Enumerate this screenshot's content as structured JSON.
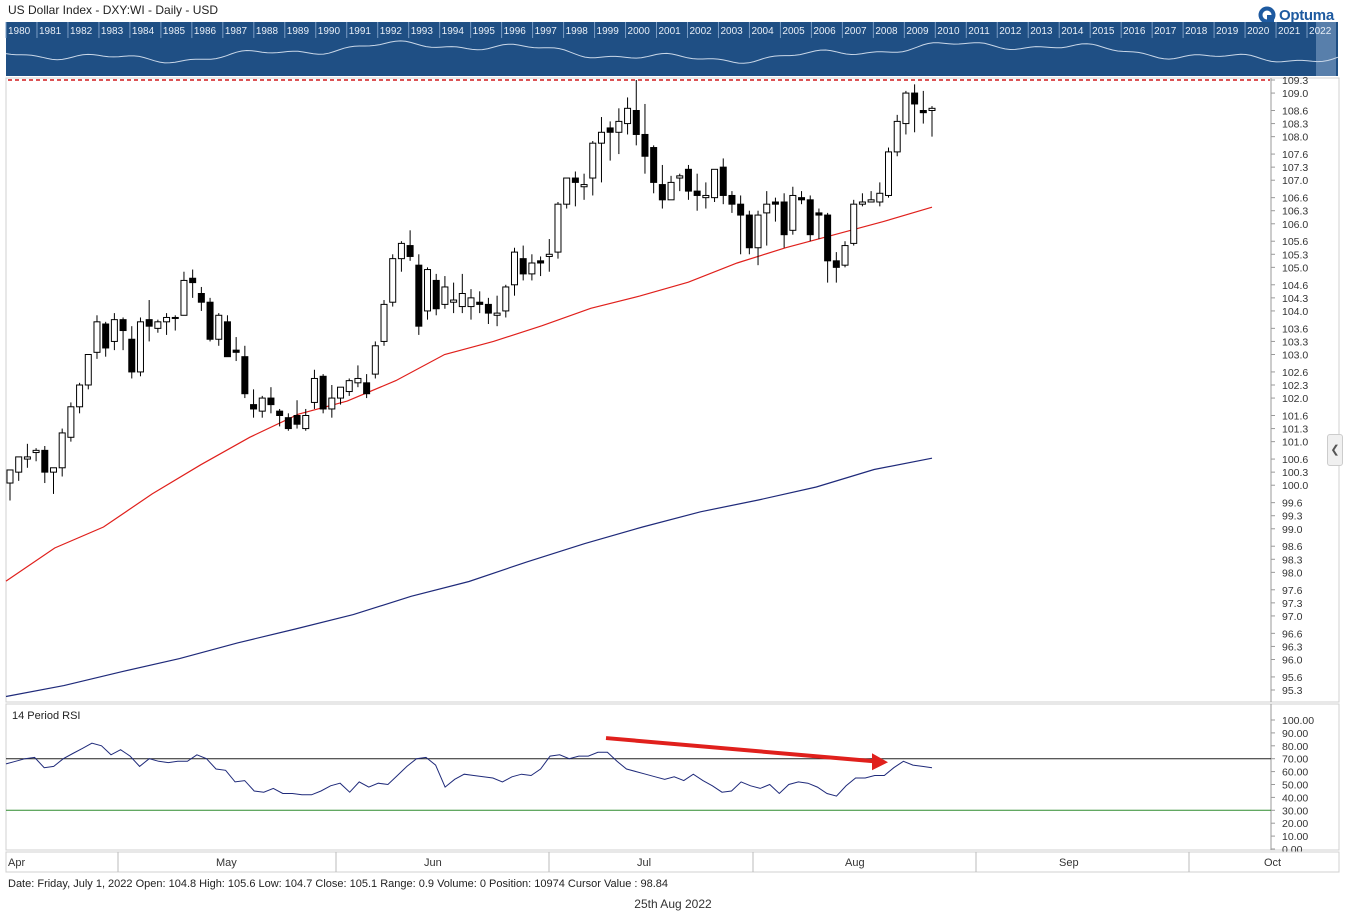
{
  "header": {
    "title": "US Dollar Index - DXY:WI - Daily - USD",
    "logo_text": "Optuma"
  },
  "overview": {
    "years": [
      "1980",
      "1981",
      "1982",
      "1983",
      "1984",
      "1985",
      "1986",
      "1987",
      "1988",
      "1989",
      "1990",
      "1991",
      "1992",
      "1993",
      "1994",
      "1995",
      "1996",
      "1997",
      "1998",
      "1999",
      "2000",
      "2001",
      "2002",
      "2003",
      "2004",
      "2005",
      "2006",
      "2007",
      "2008",
      "2009",
      "2010",
      "2011",
      "2012",
      "2013",
      "2014",
      "2015",
      "2016",
      "2017",
      "2018",
      "2019",
      "2020",
      "2021",
      "2022"
    ]
  },
  "chart_data": [
    {
      "type": "candlestick",
      "title": "US Dollar Index - DXY:WI - Daily - USD",
      "y_ticks": [
        109.3,
        109.0,
        108.6,
        108.3,
        108.0,
        107.6,
        107.3,
        107.0,
        106.6,
        106.3,
        106.0,
        105.6,
        105.3,
        105.0,
        104.6,
        104.3,
        104.0,
        103.6,
        103.3,
        103.0,
        102.6,
        102.3,
        102.0,
        101.6,
        101.3,
        101.0,
        100.6,
        100.3,
        100.0,
        99.6,
        99.3,
        99.0,
        98.6,
        98.3,
        98.0,
        97.6,
        97.3,
        97.0,
        96.6,
        96.3,
        96.0,
        95.6,
        95.3
      ],
      "ylim": [
        95.0,
        109.3
      ],
      "resistance_level": 109.3,
      "months": [
        "Apr",
        "May",
        "Jun",
        "Jul",
        "Aug",
        "Sep",
        "Oct"
      ],
      "ohlc": [
        [
          100.05,
          100.35,
          99.65,
          100.35
        ],
        [
          100.3,
          100.65,
          100.1,
          100.65
        ],
        [
          100.6,
          100.95,
          100.4,
          100.65
        ],
        [
          100.75,
          100.85,
          100.55,
          100.8
        ],
        [
          100.8,
          100.9,
          100.05,
          100.3
        ],
        [
          100.3,
          100.4,
          99.8,
          100.4
        ],
        [
          100.4,
          101.3,
          100.2,
          101.2
        ],
        [
          101.1,
          101.9,
          101.0,
          101.8
        ],
        [
          101.8,
          102.35,
          101.65,
          102.3
        ],
        [
          102.3,
          103.0,
          102.2,
          103.0
        ],
        [
          103.05,
          103.9,
          102.9,
          103.75
        ],
        [
          103.7,
          103.75,
          102.95,
          103.15
        ],
        [
          103.3,
          103.95,
          103.1,
          103.8
        ],
        [
          103.8,
          103.85,
          103.1,
          103.55
        ],
        [
          103.35,
          103.65,
          102.45,
          102.6
        ],
        [
          102.6,
          103.85,
          102.5,
          103.75
        ],
        [
          103.8,
          104.25,
          103.3,
          103.65
        ],
        [
          103.6,
          103.8,
          103.5,
          103.75
        ],
        [
          103.75,
          103.95,
          103.45,
          103.85
        ],
        [
          103.85,
          103.9,
          103.55,
          103.85
        ],
        [
          103.9,
          104.9,
          103.9,
          104.7
        ],
        [
          104.75,
          104.95,
          104.3,
          104.65
        ],
        [
          104.4,
          104.55,
          104.0,
          104.2
        ],
        [
          104.2,
          104.3,
          103.3,
          103.35
        ],
        [
          103.35,
          103.95,
          103.2,
          103.9
        ],
        [
          103.75,
          103.9,
          102.95,
          102.95
        ],
        [
          103.1,
          103.4,
          102.85,
          103.05
        ],
        [
          102.95,
          103.2,
          102.0,
          102.1
        ],
        [
          101.85,
          102.2,
          101.55,
          101.75
        ],
        [
          101.7,
          102.05,
          101.55,
          102.0
        ],
        [
          102.0,
          102.25,
          101.65,
          101.85
        ],
        [
          101.7,
          101.75,
          101.35,
          101.6
        ],
        [
          101.55,
          101.65,
          101.25,
          101.3
        ],
        [
          101.6,
          101.95,
          101.3,
          101.4
        ],
        [
          101.3,
          101.75,
          101.25,
          101.6
        ],
        [
          101.9,
          102.65,
          101.75,
          102.45
        ],
        [
          102.5,
          102.55,
          101.65,
          101.75
        ],
        [
          101.75,
          102.3,
          101.55,
          102.0
        ],
        [
          102.0,
          102.25,
          101.85,
          102.25
        ],
        [
          102.15,
          102.45,
          102.05,
          102.4
        ],
        [
          102.35,
          102.75,
          102.25,
          102.45
        ],
        [
          102.35,
          102.55,
          102.0,
          102.1
        ],
        [
          102.55,
          103.3,
          102.45,
          103.2
        ],
        [
          103.3,
          104.25,
          103.2,
          104.15
        ],
        [
          104.2,
          105.3,
          104.1,
          105.2
        ],
        [
          105.2,
          105.6,
          104.9,
          105.55
        ],
        [
          105.5,
          105.85,
          105.15,
          105.25
        ],
        [
          105.05,
          105.3,
          103.45,
          103.65
        ],
        [
          104.0,
          105.0,
          103.8,
          104.95
        ],
        [
          104.7,
          104.85,
          103.9,
          104.05
        ],
        [
          104.15,
          104.8,
          104.05,
          104.55
        ],
        [
          104.2,
          104.65,
          103.95,
          104.25
        ],
        [
          104.1,
          104.85,
          103.95,
          104.4
        ],
        [
          104.1,
          104.5,
          103.8,
          104.3
        ],
        [
          104.2,
          104.45,
          103.95,
          104.15
        ],
        [
          104.15,
          104.3,
          103.7,
          103.95
        ],
        [
          103.9,
          104.35,
          103.65,
          103.95
        ],
        [
          104.0,
          104.6,
          103.85,
          104.55
        ],
        [
          104.6,
          105.45,
          104.35,
          105.35
        ],
        [
          105.2,
          105.5,
          104.7,
          104.85
        ],
        [
          104.85,
          105.3,
          104.7,
          105.1
        ],
        [
          105.15,
          105.25,
          104.8,
          105.1
        ],
        [
          105.25,
          105.65,
          104.9,
          105.3
        ],
        [
          105.35,
          106.5,
          105.2,
          106.45
        ],
        [
          106.45,
          107.05,
          106.35,
          107.05
        ],
        [
          107.05,
          107.2,
          106.4,
          106.95
        ],
        [
          106.85,
          107.15,
          106.55,
          106.9
        ],
        [
          107.05,
          107.9,
          106.65,
          107.85
        ],
        [
          107.85,
          108.45,
          106.95,
          108.1
        ],
        [
          108.2,
          108.35,
          107.45,
          108.1
        ],
        [
          108.1,
          108.65,
          107.6,
          108.35
        ],
        [
          108.3,
          108.9,
          108.05,
          108.65
        ],
        [
          108.6,
          109.3,
          107.8,
          108.05
        ],
        [
          108.05,
          108.75,
          107.15,
          107.55
        ],
        [
          107.75,
          107.8,
          106.7,
          106.95
        ],
        [
          106.9,
          107.35,
          106.35,
          106.55
        ],
        [
          106.55,
          107.1,
          106.55,
          106.95
        ],
        [
          107.05,
          107.15,
          106.75,
          107.1
        ],
        [
          107.25,
          107.35,
          106.55,
          106.75
        ],
        [
          106.75,
          107.15,
          106.3,
          106.65
        ],
        [
          106.6,
          106.95,
          106.35,
          106.65
        ],
        [
          106.6,
          107.25,
          106.5,
          107.25
        ],
        [
          107.3,
          107.5,
          106.45,
          106.65
        ],
        [
          106.65,
          106.75,
          106.25,
          106.45
        ],
        [
          106.45,
          106.65,
          105.3,
          106.2
        ],
        [
          106.2,
          106.3,
          105.3,
          105.45
        ],
        [
          105.45,
          106.3,
          105.05,
          106.2
        ],
        [
          106.25,
          106.75,
          105.5,
          106.45
        ],
        [
          106.5,
          106.6,
          106.05,
          106.45
        ],
        [
          106.5,
          106.7,
          105.45,
          105.75
        ],
        [
          105.85,
          106.85,
          105.75,
          106.65
        ],
        [
          106.6,
          106.75,
          106.45,
          106.55
        ],
        [
          106.55,
          106.65,
          105.6,
          105.75
        ],
        [
          106.25,
          106.35,
          105.65,
          106.2
        ],
        [
          106.2,
          106.25,
          104.65,
          105.15
        ],
        [
          105.15,
          105.35,
          104.65,
          105.0
        ],
        [
          105.05,
          105.6,
          105.0,
          105.5
        ],
        [
          105.55,
          106.55,
          105.5,
          106.45
        ],
        [
          106.45,
          106.7,
          106.4,
          106.5
        ],
        [
          106.5,
          106.75,
          106.5,
          106.55
        ],
        [
          106.5,
          106.95,
          106.4,
          106.7
        ],
        [
          106.65,
          107.75,
          106.6,
          107.65
        ],
        [
          107.65,
          108.5,
          107.55,
          108.35
        ],
        [
          108.3,
          109.05,
          108.05,
          109.0
        ],
        [
          109.0,
          109.2,
          108.1,
          108.75
        ],
        [
          108.6,
          109.05,
          108.3,
          108.55
        ],
        [
          108.6,
          108.7,
          108.0,
          108.65
        ]
      ],
      "series": [
        {
          "name": "",
          "color": "#e0201c",
          "values": [
            97.8,
            98.56,
            99.04,
            99.8,
            100.47,
            101.1,
            101.63,
            101.93,
            102.4,
            103.0,
            103.3,
            103.66,
            104.06,
            104.34,
            104.66,
            105.1,
            105.45,
            105.75,
            106.05,
            106.38
          ]
        },
        {
          "name": "",
          "color": "#1f2a7a",
          "values": [
            95.15,
            95.4,
            95.72,
            96.02,
            96.38,
            96.7,
            97.03,
            97.45,
            97.79,
            98.24,
            98.66,
            99.04,
            99.39,
            99.66,
            99.96,
            100.36,
            100.62
          ]
        }
      ]
    },
    {
      "type": "line",
      "title": "14 Period RSI",
      "y_ticks": [
        100.0,
        90.0,
        80.0,
        70.0,
        60.0,
        50.0,
        40.0,
        30.0,
        20.0,
        10.0,
        0.0
      ],
      "ylim": [
        0,
        100
      ],
      "reference_lines": [
        70,
        30
      ],
      "series": [
        {
          "name": "",
          "color": "#1f2a7a",
          "values": [
            66,
            68,
            70,
            71,
            63,
            64,
            70,
            74,
            78,
            82,
            80,
            73,
            77,
            72,
            64,
            70,
            68,
            67,
            68,
            68,
            73,
            70,
            62,
            61,
            52,
            53,
            45,
            44,
            47,
            43,
            43,
            42,
            42,
            45,
            49,
            51,
            44,
            52,
            48,
            51,
            50,
            57,
            64,
            70,
            71,
            65,
            48,
            54,
            58,
            57,
            56,
            55,
            52,
            56,
            58,
            57,
            62,
            72,
            73,
            70,
            72,
            72,
            75,
            75,
            68,
            62,
            60,
            58,
            56,
            54,
            56,
            53,
            58,
            53,
            49,
            44,
            45,
            52,
            49,
            47,
            50,
            43,
            50,
            52,
            51,
            48,
            43,
            41,
            49,
            55,
            55,
            57,
            57,
            63,
            68,
            65,
            64,
            63
          ]
        }
      ],
      "arrow_annotation": {
        "start_value": 86,
        "end_value": 68,
        "color": "#e0201c"
      }
    }
  ],
  "status_bar": {
    "text": "Date: Friday, July 1, 2022 Open: 104.8 High: 105.6 Low: 104.7 Close: 105.1 Range: 0.9 Volume: 0 Position: 10974 Cursor Value : 98.84"
  },
  "footer": {
    "date": "25th Aug 2022"
  }
}
